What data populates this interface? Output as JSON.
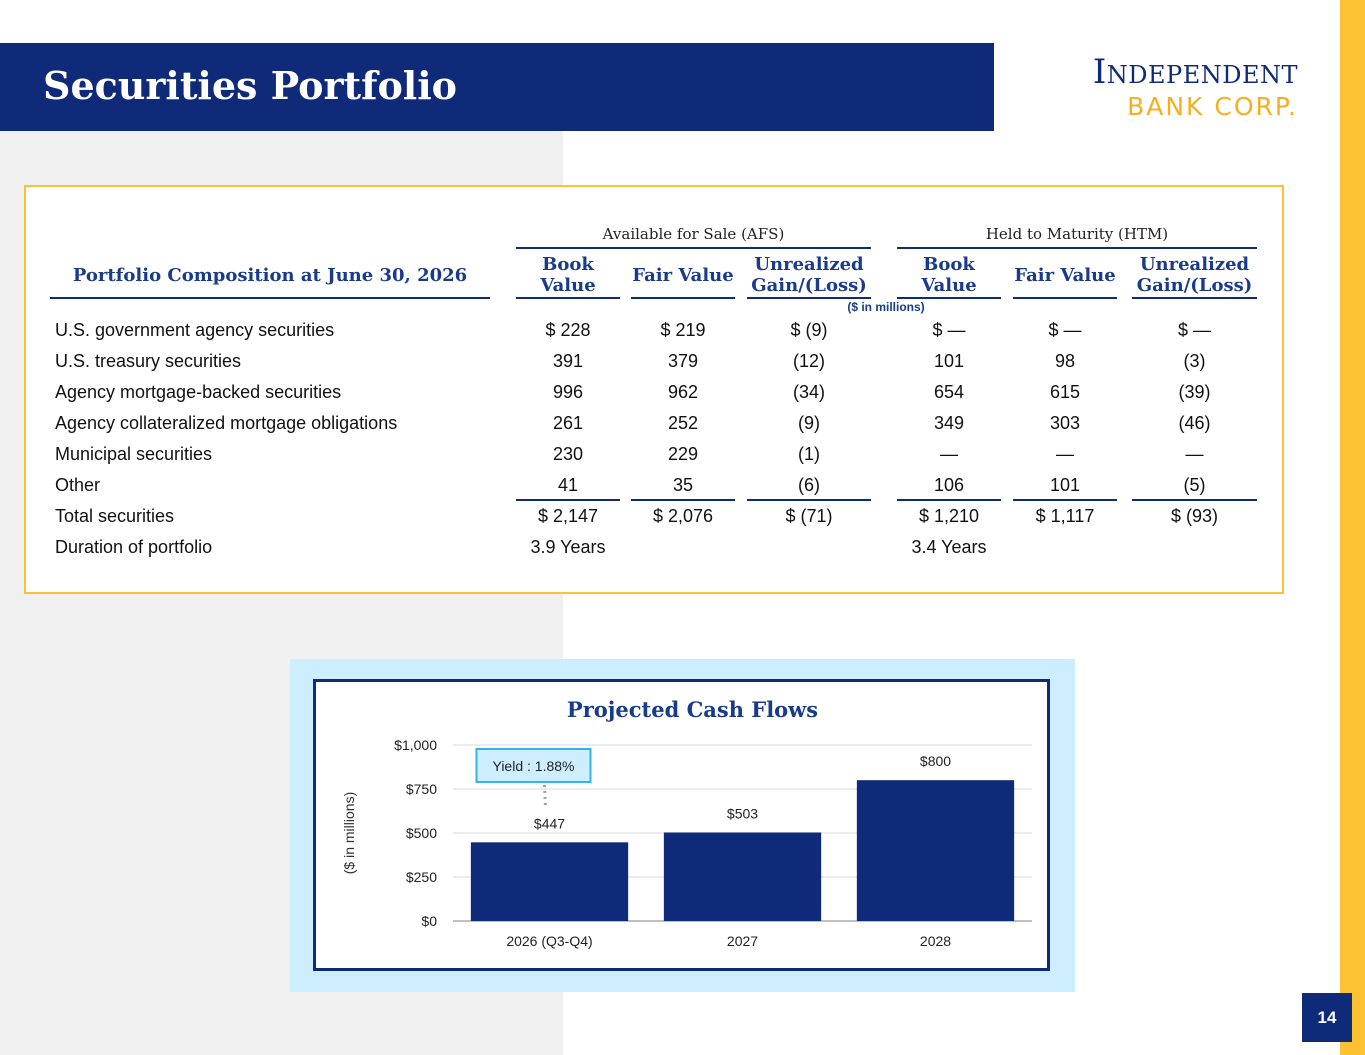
{
  "header": {
    "title": "Securities Portfolio",
    "logo_line1": "Independent",
    "logo_line2": "BANK CORP."
  },
  "table": {
    "section_title": "Portfolio Composition at June 30, 2026",
    "groups": [
      "Available for Sale (AFS)",
      "Held to Maturity (HTM)"
    ],
    "columns": [
      "Book\nValue",
      "Fair Value",
      "Unrealized\nGain/(Loss)",
      "Book\nValue",
      "Fair Value",
      "Unrealized\nGain/(Loss)"
    ],
    "units": "($ in millions)",
    "rows": [
      {
        "label": "U.S. government agency securities",
        "values": [
          "$ 228",
          "$ 219",
          "$ (9)",
          "$ —",
          "$ —",
          "$ —"
        ]
      },
      {
        "label": "U.S. treasury securities",
        "values": [
          "391",
          "379",
          "(12)",
          "101",
          "98",
          "(3)"
        ]
      },
      {
        "label": "Agency mortgage-backed securities",
        "values": [
          "996",
          "962",
          "(34)",
          "654",
          "615",
          "(39)"
        ]
      },
      {
        "label": "Agency collateralized mortgage obligations",
        "values": [
          "261",
          "252",
          "(9)",
          "349",
          "303",
          "(46)"
        ]
      },
      {
        "label": "Municipal securities",
        "values": [
          "230",
          "229",
          "(1)",
          "—",
          "—",
          "—"
        ]
      },
      {
        "label": "Other",
        "values": [
          "41",
          "35",
          "(6)",
          "106",
          "101",
          "(5)"
        ]
      },
      {
        "label": "Total securities",
        "values": [
          "$ 2,147",
          "$ 2,076",
          "$ (71)",
          "$ 1,210",
          "$ 1,117",
          "$ (93)"
        ]
      },
      {
        "label": "Duration of portfolio",
        "values": [
          "3.9 Years",
          "",
          "",
          "3.4 Years",
          "",
          ""
        ]
      }
    ]
  },
  "chart_data": {
    "type": "bar",
    "title": "Projected Cash Flows",
    "ylabel": "($ in millions)",
    "xlabel": "",
    "categories": [
      "2026 (Q3-Q4)",
      "2027",
      "2028"
    ],
    "values": [
      447,
      503,
      800
    ],
    "data_labels": [
      "$447",
      "$503",
      "$800"
    ],
    "ylim": [
      0,
      1000
    ],
    "yticks": [
      0,
      250,
      500,
      750,
      1000
    ],
    "ytick_labels": [
      "$0",
      "$250",
      "$500",
      "$750",
      "$1,000"
    ],
    "grid": true,
    "bar_color": "#0e2a78",
    "annotation": {
      "text": "Yield : 1.88%",
      "category": "2026 (Q3-Q4)"
    }
  },
  "footer": {
    "page_number": "14"
  },
  "colors": {
    "navy": "#0e2a78",
    "gold": "#fdc134",
    "light_blue": "#cdeeff"
  }
}
